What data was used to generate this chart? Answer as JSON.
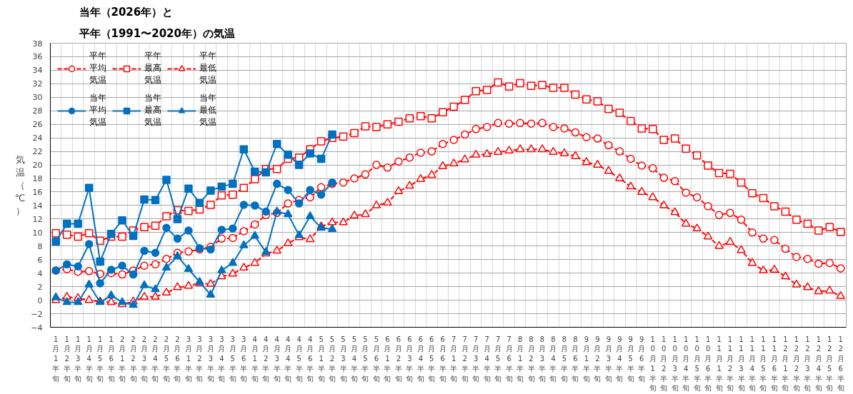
{
  "chart_data": {
    "type": "line",
    "title": "当年（2026年）と",
    "subtitle": "平年（1991〜2020年）の気温",
    "ylabel": "気温（℃）",
    "categories": [
      "1月1半旬",
      "1月2半旬",
      "1月3半旬",
      "1月4半旬",
      "1月5半旬",
      "1月6半旬",
      "2月1半旬",
      "2月2半旬",
      "2月3半旬",
      "2月4半旬",
      "2月5半旬",
      "2月6半旬",
      "3月1半旬",
      "3月2半旬",
      "3月3半旬",
      "3月4半旬",
      "3月5半旬",
      "3月6半旬",
      "4月1半旬",
      "4月2半旬",
      "4月3半旬",
      "4月4半旬",
      "4月5半旬",
      "4月6半旬",
      "5月1半旬",
      "5月2半旬",
      "5月3半旬",
      "5月4半旬",
      "5月5半旬",
      "5月6半旬",
      "6月1半旬",
      "6月2半旬",
      "6月3半旬",
      "6月4半旬",
      "6月5半旬",
      "6月6半旬",
      "7月1半旬",
      "7月2半旬",
      "7月3半旬",
      "7月4半旬",
      "7月5半旬",
      "7月6半旬",
      "8月1半旬",
      "8月2半旬",
      "8月3半旬",
      "8月4半旬",
      "8月5半旬",
      "8月6半旬",
      "9月1半旬",
      "9月2半旬",
      "9月3半旬",
      "9月4半旬",
      "9月5半旬",
      "9月6半旬",
      "10月1半旬",
      "10月2半旬",
      "10月3半旬",
      "10月4半旬",
      "10月5半旬",
      "10月6半旬",
      "11月1半旬",
      "11月2半旬",
      "11月3半旬",
      "11月4半旬",
      "11月5半旬",
      "11月6半旬",
      "12月1半旬",
      "12月2半旬",
      "12月3半旬",
      "12月4半旬",
      "12月5半旬",
      "12月6半旬"
    ],
    "series": [
      {
        "name": "平年平均気温",
        "color": "#ff0000",
        "marker": "circle",
        "line_style": "dashed",
        "values": [
          4.4,
          4.6,
          4.2,
          4.3,
          3.9,
          4.0,
          3.8,
          4.4,
          5.1,
          5.3,
          6.1,
          7.0,
          7.2,
          7.5,
          7.9,
          9.1,
          9.2,
          10.2,
          11.2,
          12.6,
          12.9,
          14.3,
          14.8,
          15.2,
          16.7,
          17.2,
          17.4,
          18.0,
          18.6,
          20.0,
          19.6,
          20.5,
          21.1,
          21.8,
          22.0,
          23.1,
          23.7,
          24.5,
          25.3,
          25.6,
          26.2,
          26.1,
          26.2,
          26.1,
          26.2,
          25.6,
          25.4,
          24.8,
          24.1,
          23.9,
          22.9,
          22.0,
          20.9,
          19.9,
          19.5,
          18.1,
          17.6,
          15.9,
          15.2,
          13.9,
          12.6,
          12.9,
          11.9,
          10.0,
          9.1,
          8.9,
          7.6,
          6.4,
          6.1,
          5.4,
          5.5,
          4.7
        ]
      },
      {
        "name": "平年最高気温",
        "color": "#ff0000",
        "marker": "square",
        "line_style": "dashed",
        "values": [
          9.9,
          9.7,
          9.4,
          9.9,
          8.8,
          9.4,
          9.4,
          10.3,
          10.8,
          11.0,
          12.4,
          13.3,
          13.2,
          13.4,
          14.1,
          15.5,
          15.6,
          16.6,
          17.9,
          19.4,
          19.4,
          20.9,
          21.1,
          22.3,
          23.5,
          24.0,
          24.2,
          24.7,
          25.7,
          25.6,
          26.0,
          26.4,
          26.9,
          27.2,
          26.9,
          27.8,
          28.6,
          29.6,
          30.9,
          31.1,
          32.2,
          31.6,
          32.1,
          31.7,
          31.8,
          31.4,
          31.4,
          30.4,
          29.7,
          29.4,
          28.3,
          27.7,
          26.5,
          25.4,
          25.3,
          23.7,
          23.9,
          22.4,
          21.4,
          19.9,
          18.8,
          18.7,
          17.4,
          15.8,
          15.1,
          13.9,
          13.1,
          11.9,
          11.3,
          10.3,
          10.8,
          10.1
        ]
      },
      {
        "name": "平年最低気温",
        "color": "#ff0000",
        "marker": "triangle",
        "line_style": "dashed",
        "values": [
          0.0,
          0.5,
          0.3,
          0.0,
          -0.2,
          -0.3,
          -0.6,
          -0.2,
          0.5,
          0.5,
          1.1,
          1.9,
          2.1,
          2.5,
          2.4,
          3.5,
          3.9,
          4.8,
          5.5,
          6.9,
          7.3,
          8.4,
          9.3,
          9.0,
          10.9,
          11.5,
          11.5,
          12.5,
          12.7,
          14.0,
          14.4,
          16.1,
          16.9,
          17.9,
          18.5,
          19.8,
          20.2,
          20.8,
          21.5,
          21.6,
          21.9,
          22.1,
          22.3,
          22.3,
          22.3,
          21.9,
          21.7,
          21.3,
          20.4,
          20.0,
          19.1,
          18.0,
          16.8,
          16.0,
          15.2,
          14.0,
          13.0,
          11.3,
          10.6,
          9.4,
          8.0,
          8.6,
          7.4,
          5.5,
          4.4,
          4.5,
          3.5,
          2.3,
          1.9,
          1.3,
          1.4,
          0.6
        ]
      },
      {
        "name": "当年平均気温",
        "color": "#0070c0",
        "marker": "circle",
        "line_style": "solid",
        "values": [
          4.4,
          5.3,
          5.0,
          8.3,
          2.5,
          4.5,
          5.1,
          3.8,
          7.3,
          7.0,
          10.7,
          9.1,
          10.3,
          7.7,
          7.5,
          10.4,
          10.6,
          14.1,
          14.0,
          13.1,
          17.2,
          16.3,
          14.3,
          16.3,
          15.6,
          17.4,
          null,
          null,
          null,
          null,
          null,
          null,
          null,
          null,
          null,
          null,
          null,
          null,
          null,
          null,
          null,
          null,
          null,
          null,
          null,
          null,
          null,
          null,
          null,
          null,
          null,
          null,
          null,
          null,
          null,
          null,
          null,
          null,
          null,
          null,
          null,
          null,
          null,
          null,
          null,
          null,
          null,
          null,
          null,
          null,
          null,
          null
        ]
      },
      {
        "name": "当年最高気温",
        "color": "#0070c0",
        "marker": "square",
        "line_style": "solid",
        "values": [
          8.7,
          11.3,
          11.3,
          16.6,
          5.7,
          9.8,
          11.8,
          9.5,
          14.9,
          14.8,
          17.8,
          12.0,
          16.5,
          14.4,
          16.2,
          16.8,
          17.2,
          22.3,
          19.0,
          18.9,
          23.1,
          21.5,
          20.0,
          21.7,
          20.9,
          24.5,
          null,
          null,
          null,
          null,
          null,
          null,
          null,
          null,
          null,
          null,
          null,
          null,
          null,
          null,
          null,
          null,
          null,
          null,
          null,
          null,
          null,
          null,
          null,
          null,
          null,
          null,
          null,
          null,
          null,
          null,
          null,
          null,
          null,
          null,
          null,
          null,
          null,
          null,
          null,
          null,
          null,
          null,
          null,
          null,
          null,
          null
        ]
      },
      {
        "name": "当年最低気温",
        "color": "#0070c0",
        "marker": "triangle",
        "line_style": "solid",
        "values": [
          0.4,
          -0.3,
          -0.3,
          2.3,
          -0.3,
          0.7,
          -0.3,
          -0.7,
          2.2,
          1.6,
          4.8,
          6.5,
          4.6,
          2.7,
          0.8,
          4.4,
          5.5,
          8.1,
          9.5,
          7.1,
          13.1,
          12.7,
          9.6,
          12.4,
          10.7,
          10.5,
          null,
          null,
          null,
          null,
          null,
          null,
          null,
          null,
          null,
          null,
          null,
          null,
          null,
          null,
          null,
          null,
          null,
          null,
          null,
          null,
          null,
          null,
          null,
          null,
          null,
          null,
          null,
          null,
          null,
          null,
          null,
          null,
          null,
          null,
          null,
          null,
          null,
          null,
          null,
          null,
          null,
          null,
          null,
          null,
          null,
          null
        ]
      }
    ],
    "ylim": [
      -4,
      38
    ],
    "yticks": [
      -4,
      -2,
      0,
      2,
      4,
      6,
      8,
      10,
      12,
      14,
      16,
      18,
      20,
      22,
      24,
      26,
      28,
      30,
      32,
      34,
      36,
      38
    ],
    "grid": true,
    "legend": "top left"
  }
}
